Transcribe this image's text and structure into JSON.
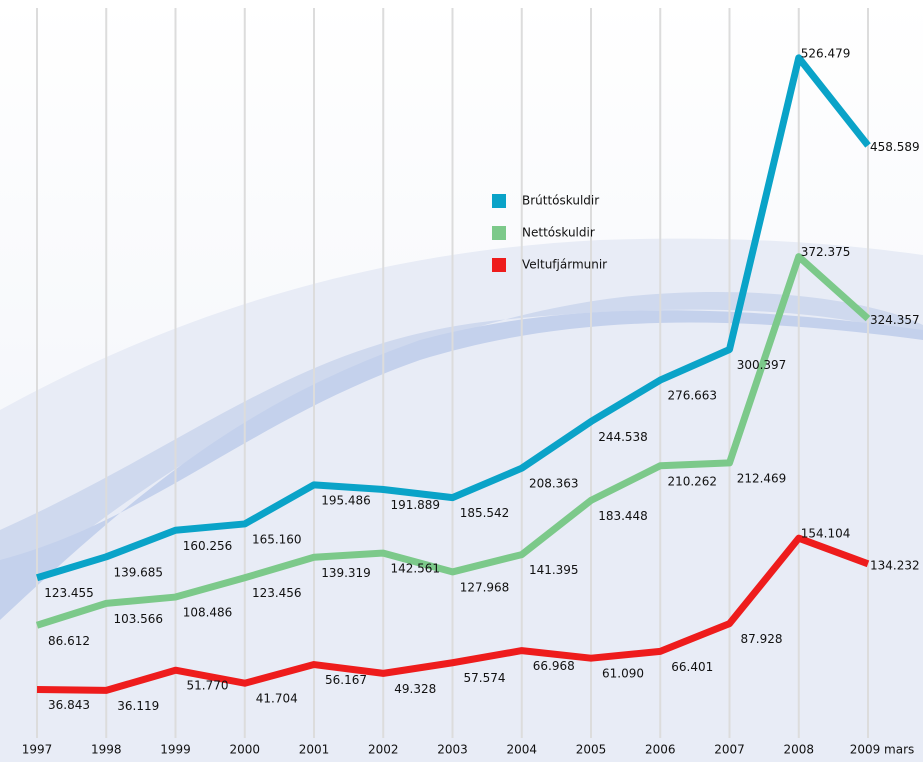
{
  "chart_data": {
    "type": "line",
    "categories": [
      "1997",
      "1998",
      "1999",
      "2000",
      "2001",
      "2002",
      "2003",
      "2004",
      "2005",
      "2006",
      "2007",
      "2008",
      "2009 mars"
    ],
    "series": [
      {
        "name": "Brúttóskuldir",
        "color": "#0aa3c8",
        "values": [
          123455,
          139685,
          160256,
          165160,
          195486,
          191889,
          185542,
          208363,
          244538,
          276663,
          300397,
          526479,
          458589
        ],
        "value_labels": [
          "123.455",
          "139.685",
          "160.256",
          "165.160",
          "195.486",
          "191.889",
          "185.542",
          "208.363",
          "244.538",
          "276.663",
          "300.397",
          "526.479",
          "458.589"
        ]
      },
      {
        "name": "Nettóskuldir",
        "color": "#7cc98a",
        "values": [
          86612,
          103566,
          108486,
          123456,
          139319,
          142561,
          127968,
          141395,
          183448,
          210262,
          212469,
          372375,
          324357
        ],
        "value_labels": [
          "86.612",
          "103.566",
          "108.486",
          "123.456",
          "139.319",
          "142.561",
          "127.968",
          "141.395",
          "183.448",
          "210.262",
          "212.469",
          "372.375",
          "324.357"
        ]
      },
      {
        "name": "Veltufjármunir",
        "color": "#ee1c1c",
        "values": [
          36843,
          36119,
          51770,
          41704,
          56167,
          49328,
          57574,
          66968,
          61090,
          66401,
          87928,
          154104,
          134232
        ],
        "value_labels": [
          "36.843",
          "36.119",
          "51.770",
          "41.704",
          "56.167",
          "49.328",
          "57.574",
          "66.968",
          "61.090",
          "66.401",
          "87.928",
          "154.104",
          "134.232"
        ]
      }
    ],
    "grid": true
  }
}
